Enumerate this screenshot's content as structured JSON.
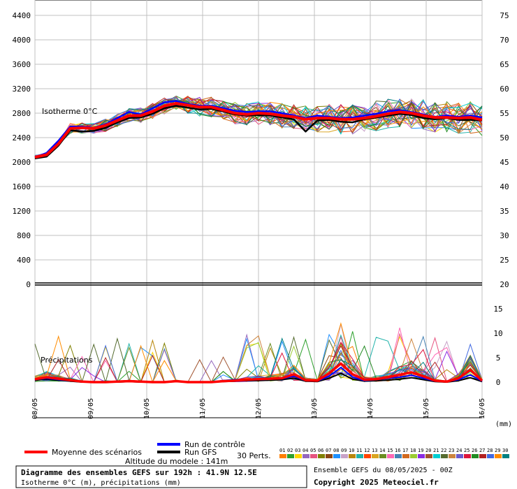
{
  "chart_data": {
    "type": "line",
    "dates": [
      "08/05",
      "09/05",
      "10/05",
      "11/05",
      "12/05",
      "13/05",
      "14/05",
      "15/05",
      "16/05"
    ],
    "isotherm": {
      "label": "Isotherme 0°C",
      "y_ticks": [
        0,
        400,
        800,
        1200,
        1600,
        2000,
        2400,
        2800,
        3200,
        3600,
        4000,
        4400
      ],
      "ylim": [
        0,
        4600
      ],
      "mean": [
        2080,
        2120,
        2300,
        2550,
        2560,
        2550,
        2600,
        2680,
        2760,
        2760,
        2830,
        2920,
        2960,
        2930,
        2900,
        2900,
        2850,
        2800,
        2780,
        2800,
        2790,
        2760,
        2740,
        2700,
        2720,
        2720,
        2700,
        2700,
        2720,
        2750,
        2790,
        2820,
        2800,
        2760,
        2730,
        2730,
        2720,
        2730,
        2690
      ],
      "control": [
        2080,
        2150,
        2350,
        2580,
        2580,
        2560,
        2620,
        2720,
        2820,
        2780,
        2880,
        2980,
        3000,
        2950,
        2920,
        2920,
        2880,
        2840,
        2820,
        2830,
        2830,
        2800,
        2760,
        2720,
        2760,
        2740,
        2720,
        2730,
        2760,
        2790,
        2830,
        2850,
        2820,
        2780,
        2740,
        2760,
        2740,
        2760,
        2730
      ],
      "gfs": [
        2060,
        2090,
        2270,
        2520,
        2500,
        2510,
        2560,
        2650,
        2720,
        2730,
        2790,
        2880,
        2920,
        2890,
        2860,
        2870,
        2830,
        2780,
        2760,
        2770,
        2760,
        2730,
        2700,
        2500,
        2680,
        2690,
        2660,
        2650,
        2700,
        2730,
        2760,
        2790,
        2770,
        2720,
        2700,
        2720,
        2690,
        2690,
        2680
      ]
    },
    "precip": {
      "label": "Précipitations",
      "unit_label": "(mm)",
      "y_ticks": [
        0,
        5,
        10,
        15,
        20
      ],
      "ylim": [
        -8,
        20
      ],
      "mean": [
        0.6,
        1.0,
        0.7,
        0.4,
        0.1,
        0.0,
        0.0,
        0.1,
        0.2,
        0.1,
        0.0,
        0.0,
        0.2,
        0.0,
        0.0,
        0.0,
        0.2,
        0.3,
        0.5,
        0.6,
        0.7,
        0.8,
        1.6,
        0.4,
        0.3,
        1.8,
        3.8,
        1.6,
        0.5,
        0.6,
        1.0,
        1.5,
        2.0,
        1.2,
        0.3,
        0.1,
        0.8,
        2.5,
        0.3
      ],
      "control": [
        0.5,
        0.8,
        0.5,
        0.3,
        0.1,
        0.0,
        0.0,
        0.1,
        0.1,
        0.1,
        0.0,
        0.0,
        0.2,
        0.0,
        0.0,
        0.0,
        0.3,
        0.5,
        0.4,
        0.5,
        0.6,
        0.7,
        1.2,
        0.3,
        0.2,
        1.2,
        3.0,
        1.0,
        0.3,
        0.5,
        0.8,
        1.0,
        1.4,
        0.8,
        0.2,
        0.1,
        0.5,
        1.5,
        0.2
      ],
      "gfs": [
        0.4,
        0.6,
        0.4,
        0.2,
        0.0,
        0.0,
        0.0,
        0.0,
        0.1,
        0.0,
        0.0,
        0.0,
        0.1,
        0.0,
        0.0,
        0.0,
        0.1,
        0.2,
        0.3,
        0.3,
        0.4,
        0.5,
        0.8,
        0.2,
        0.1,
        0.8,
        1.8,
        0.6,
        0.2,
        0.3,
        0.4,
        0.6,
        0.9,
        0.5,
        0.1,
        0.0,
        0.3,
        0.9,
        0.1
      ]
    },
    "perturbation_colors": [
      "#ff7f00",
      "#2ca02c",
      "#ffd700",
      "#9467bd",
      "#e75480",
      "#808000",
      "#8b4513",
      "#1e90ff",
      "#c8a2c8",
      "#b8860b",
      "#20b2aa",
      "#ff4500",
      "#daa520",
      "#6b8e23",
      "#ff69b4",
      "#4682b4",
      "#d2691e",
      "#9acd32",
      "#8a2be2",
      "#a0522d",
      "#00ced1",
      "#556b2f",
      "#cd853f",
      "#6a5acd",
      "#dc143c",
      "#228b22",
      "#b22222",
      "#4169e1",
      "#ff8c00",
      "#008080"
    ],
    "perturbation_codes": [
      "01",
      "02",
      "03",
      "04",
      "05",
      "06",
      "07",
      "08",
      "09",
      "10",
      "11",
      "12",
      "13",
      "14",
      "15",
      "16",
      "17",
      "18",
      "19",
      "20",
      "21",
      "22",
      "23",
      "24",
      "25",
      "26",
      "27",
      "28",
      "29",
      "30"
    ],
    "colors": {
      "mean": "#ff0000",
      "control": "#0000ff",
      "gfs": "#000000",
      "grid": "#c0c0c0"
    }
  },
  "legend": {
    "mean_label": "Moyenne des scénarios",
    "control_label": "Run de contrôle",
    "gfs_label": "Run GFS",
    "perts_label": "30 Perts.",
    "altitude_label": "Altitude du modele : 141m"
  },
  "footer": {
    "title": "Diagramme des ensembles GEFS sur 192h : 41.9N 12.5E",
    "subtitle": "Isotherme 0°C (m), précipitations (mm)",
    "run_info": "Ensemble GEFS du 08/05/2025 - 00Z",
    "copyright": "Copyright 2025 Meteociel.fr"
  }
}
